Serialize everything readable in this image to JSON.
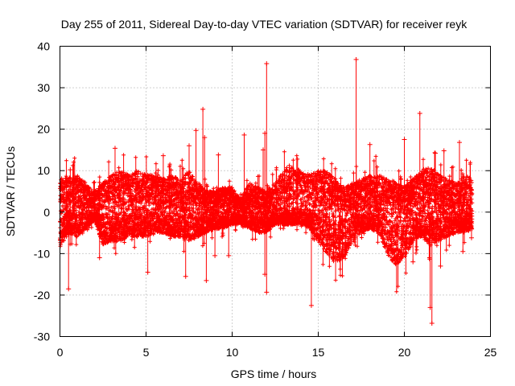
{
  "chart_data": {
    "type": "scatter",
    "title": "Day 255 of 2011, Sidereal Day-to-day VTEC variation (SDTVAR) for receiver reyk",
    "xlabel": "GPS time / hours",
    "ylabel": "SDTVAR / TECUs",
    "xlim": [
      0,
      25
    ],
    "ylim": [
      -30,
      40
    ],
    "xticks": [
      0,
      5,
      10,
      15,
      20,
      25
    ],
    "yticks": [
      -30,
      -20,
      -10,
      0,
      10,
      20,
      30,
      40
    ],
    "xtick_labels": [
      "0",
      "5",
      "10",
      "15",
      "20",
      "25"
    ],
    "ytick_labels": [
      "-30",
      "-20",
      "-10",
      "0",
      "10",
      "20",
      "30",
      "40"
    ],
    "grid": true,
    "marker": "+",
    "color": "#ff0000",
    "data_span_hours": [
      0,
      23.95
    ],
    "envelope": {
      "hours": [
        0,
        0.5,
        1,
        1.5,
        2,
        2.5,
        3,
        3.5,
        4,
        4.5,
        5,
        5.5,
        6,
        6.5,
        7,
        7.5,
        8,
        8.5,
        9,
        9.5,
        10,
        10.5,
        11,
        11.5,
        12,
        12.5,
        13,
        13.5,
        14,
        14.5,
        15,
        15.5,
        16,
        16.5,
        17,
        17.5,
        18,
        18.5,
        19,
        19.5,
        20,
        20.5,
        21,
        21.5,
        22,
        22.5,
        23,
        23.5,
        24
      ],
      "upper": [
        8,
        9,
        9,
        7,
        5,
        7,
        9,
        10,
        9,
        10,
        9,
        9,
        8,
        9,
        8,
        10,
        7,
        5,
        5,
        6,
        6,
        3,
        7,
        6,
        5,
        7,
        10,
        11,
        10,
        9,
        10,
        10,
        8,
        6,
        7,
        8,
        9,
        9,
        8,
        7,
        6,
        8,
        10,
        11,
        9,
        8,
        7,
        9,
        8
      ],
      "lower": [
        -9,
        -5,
        -6,
        -4,
        -2,
        -8,
        -7,
        -7,
        -6,
        -6,
        -6,
        -5,
        -5,
        -6,
        -6,
        -7,
        -6,
        -5,
        -4,
        -4,
        -3,
        -3,
        -4,
        -5,
        -5,
        -3,
        -3,
        -3,
        -3,
        -4,
        -7,
        -10,
        -12,
        -11,
        -7,
        -5,
        -4,
        -5,
        -10,
        -13,
        -11,
        -7,
        -6,
        -8,
        -7,
        -6,
        -5,
        -5,
        -4
      ]
    },
    "outliers": [
      {
        "x": 12.0,
        "y": 35.8
      },
      {
        "x": 17.2,
        "y": 36.8
      },
      {
        "x": 8.3,
        "y": 24.8
      },
      {
        "x": 20.9,
        "y": 23.8
      },
      {
        "x": 7.9,
        "y": 19.7
      },
      {
        "x": 11.9,
        "y": 19.0
      },
      {
        "x": 10.7,
        "y": 18.6
      },
      {
        "x": 8.4,
        "y": 18.0
      },
      {
        "x": 20.0,
        "y": 17.5
      },
      {
        "x": 18.0,
        "y": 16.3
      },
      {
        "x": 7.5,
        "y": 16.0
      },
      {
        "x": 23.2,
        "y": 16.8
      },
      {
        "x": 3.2,
        "y": 15.4
      },
      {
        "x": 11.8,
        "y": 15.0
      },
      {
        "x": 9.2,
        "y": 13.8
      },
      {
        "x": 6.0,
        "y": 13.6
      },
      {
        "x": 21.8,
        "y": 14.2
      },
      {
        "x": 22.3,
        "y": 14.8
      },
      {
        "x": 0.6,
        "y": 10.2
      },
      {
        "x": 0.5,
        "y": -18.5
      },
      {
        "x": 2.3,
        "y": -11.0
      },
      {
        "x": 5.1,
        "y": -14.5
      },
      {
        "x": 7.3,
        "y": -15.5
      },
      {
        "x": 8.5,
        "y": -16.5
      },
      {
        "x": 9.0,
        "y": -10.5
      },
      {
        "x": 9.8,
        "y": -10.5
      },
      {
        "x": 11.9,
        "y": -15.0
      },
      {
        "x": 12.0,
        "y": -19.3
      },
      {
        "x": 14.6,
        "y": -22.5
      },
      {
        "x": 20.5,
        "y": -12.0
      },
      {
        "x": 21.5,
        "y": -23.0
      },
      {
        "x": 21.6,
        "y": -26.8
      },
      {
        "x": 22.1,
        "y": -13.0
      },
      {
        "x": 23.4,
        "y": -9.5
      },
      {
        "x": 23.9,
        "y": -6.2
      }
    ]
  }
}
